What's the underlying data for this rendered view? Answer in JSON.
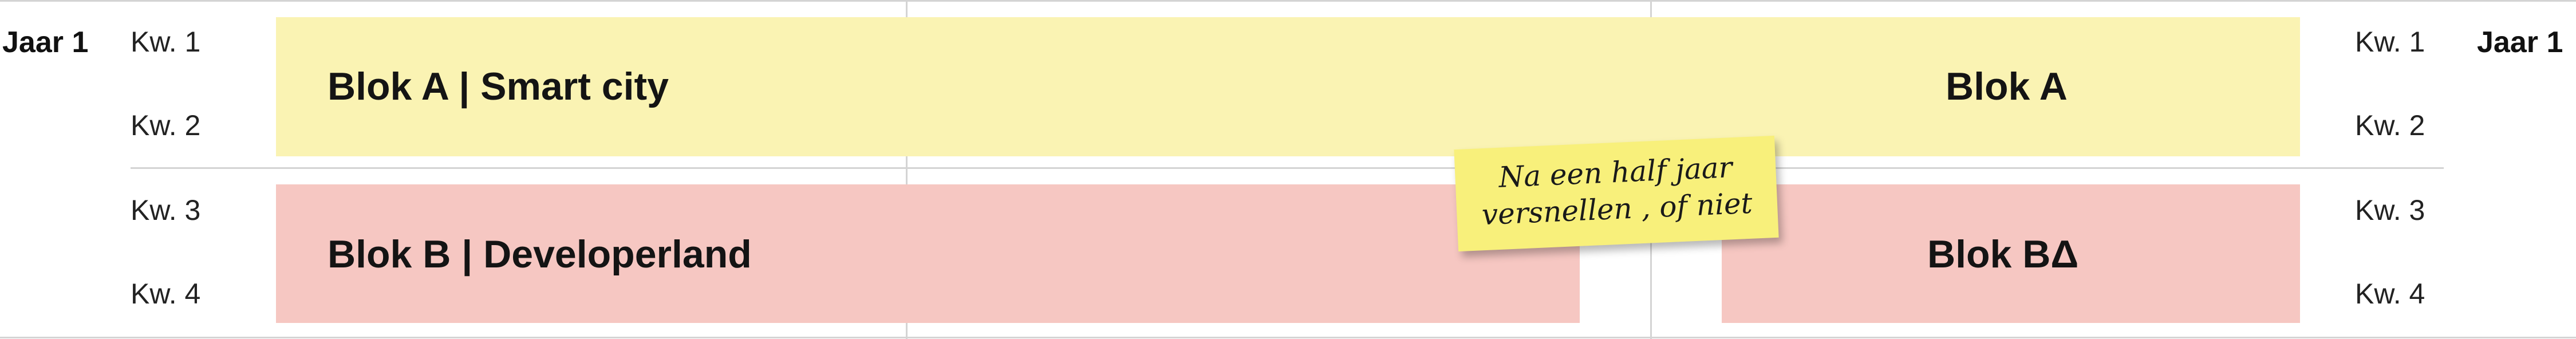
{
  "left": {
    "year": "Jaar 1",
    "quarters": [
      "Kw. 1",
      "Kw. 2",
      "Kw. 3",
      "Kw. 4"
    ]
  },
  "right": {
    "year": "Jaar 1",
    "quarters": [
      "Kw. 1",
      "Kw. 2",
      "Kw. 3",
      "Kw. 4"
    ]
  },
  "blocks": {
    "a_main": "Blok A | Smart city",
    "a_right": "Blok A",
    "b_main": "Blok B | Developerland",
    "b_right": "Blok BΔ"
  },
  "sticky_note": {
    "line1": "Na een half jaar",
    "line2": "versnellen , of niet"
  },
  "colors": {
    "block_a": "#faf3b3",
    "block_b": "#f6c7c2",
    "sticky": "#f8f07b",
    "gridline": "#d4d4d4"
  }
}
